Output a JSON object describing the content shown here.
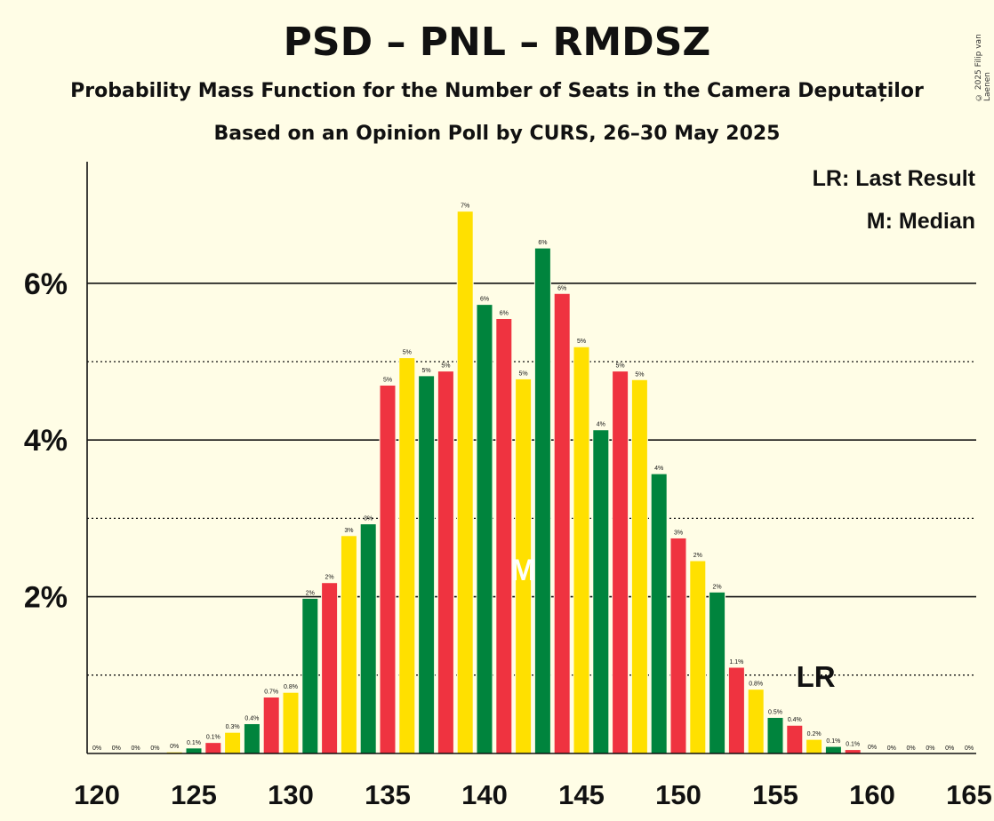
{
  "header": {
    "title": "PSD – PNL – RMDSZ",
    "subtitle1": "Probability Mass Function for the Number of Seats in the Camera Deputaților",
    "subtitle2": "Based on an Opinion Poll by CURS, 26–30 May 2025",
    "copyright": "© 2025 Filip van Laenen"
  },
  "legend": {
    "lr": "LR: Last Result",
    "median": "M: Median"
  },
  "colors": {
    "background": "#FFFDE6",
    "green": "#00843D",
    "red": "#EF3340",
    "yellow": "#FFE000"
  },
  "chart_data": {
    "type": "bar",
    "xlim": [
      120,
      165
    ],
    "ylim": [
      0,
      7.4
    ],
    "x_ticks": [
      120,
      125,
      130,
      135,
      140,
      145,
      150,
      155,
      160,
      165
    ],
    "y_ticks": [
      {
        "value": 2,
        "label": "2%"
      },
      {
        "value": 4,
        "label": "4%"
      },
      {
        "value": 6,
        "label": "6%"
      }
    ],
    "y_minor_gridlines": [
      1,
      3,
      5
    ],
    "seats": [
      120,
      121,
      122,
      123,
      124,
      125,
      126,
      127,
      128,
      129,
      130,
      131,
      132,
      133,
      134,
      135,
      136,
      137,
      138,
      139,
      140,
      141,
      142,
      143,
      144,
      145,
      146,
      147,
      148,
      149,
      150,
      151,
      152,
      153,
      154,
      155,
      156,
      157,
      158,
      159,
      160,
      161,
      162,
      163,
      164,
      165
    ],
    "values": [
      0,
      0,
      0,
      0,
      0.02,
      0.07,
      0.14,
      0.27,
      0.38,
      0.72,
      0.78,
      1.98,
      2.18,
      2.78,
      2.93,
      4.7,
      5.05,
      4.82,
      4.88,
      6.92,
      5.73,
      5.55,
      4.78,
      6.45,
      5.87,
      5.19,
      4.13,
      4.88,
      4.77,
      3.57,
      2.75,
      2.46,
      2.06,
      1.1,
      0.82,
      0.46,
      0.36,
      0.18,
      0.09,
      0.05,
      0.01,
      0,
      0,
      0,
      0,
      0
    ],
    "labels": [
      "0%",
      "0%",
      "0%",
      "0%",
      "0%",
      "0.1%",
      "0.1%",
      "0.3%",
      "0.4%",
      "0.7%",
      "0.8%",
      "2%",
      "2%",
      "3%",
      "3%",
      "5%",
      "5%",
      "5%",
      "5%",
      "7%",
      "6%",
      "6%",
      "5%",
      "6%",
      "6%",
      "5%",
      "4%",
      "5%",
      "5%",
      "4%",
      "3%",
      "2%",
      "2%",
      "1.1%",
      "0.8%",
      "0.5%",
      "0.4%",
      "0.2%",
      "0.1%",
      "0.1%",
      "0%",
      "0%",
      "0%",
      "0%",
      "0%",
      "0%"
    ],
    "median_seat": 142,
    "median_label": "M",
    "last_result_seat": 157,
    "last_result_label": "LR",
    "last_result_y": 1.0
  }
}
